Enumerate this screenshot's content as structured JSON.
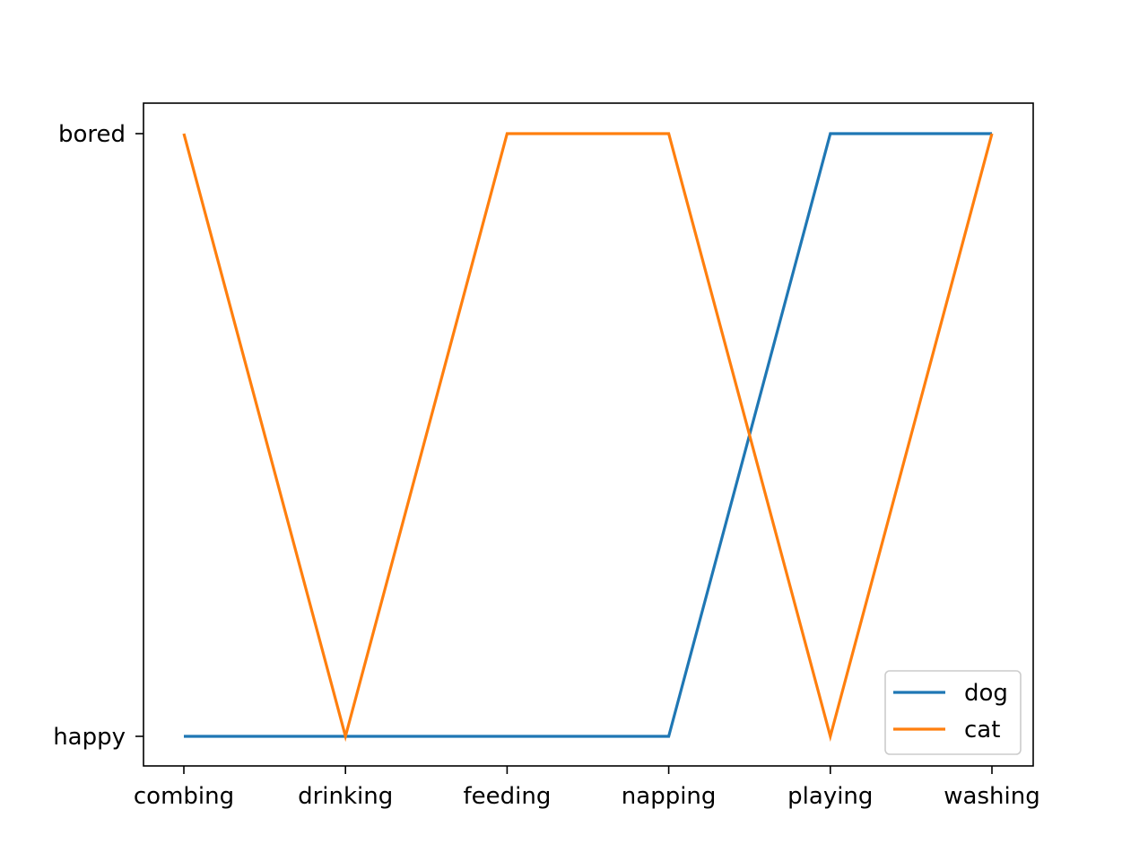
{
  "chart_data": {
    "type": "line",
    "categories": [
      "combing",
      "drinking",
      "feeding",
      "napping",
      "playing",
      "washing"
    ],
    "y_categories": [
      "happy",
      "bored"
    ],
    "series": [
      {
        "name": "dog",
        "color": "#1f77b4",
        "values": [
          "happy",
          "happy",
          "happy",
          "happy",
          "bored",
          "bored"
        ]
      },
      {
        "name": "cat",
        "color": "#ff7f0e",
        "values": [
          "bored",
          "happy",
          "bored",
          "bored",
          "happy",
          "bored"
        ]
      }
    ],
    "title": "",
    "xlabel": "",
    "ylabel": "",
    "grid": false,
    "legend_position": "lower-right"
  }
}
